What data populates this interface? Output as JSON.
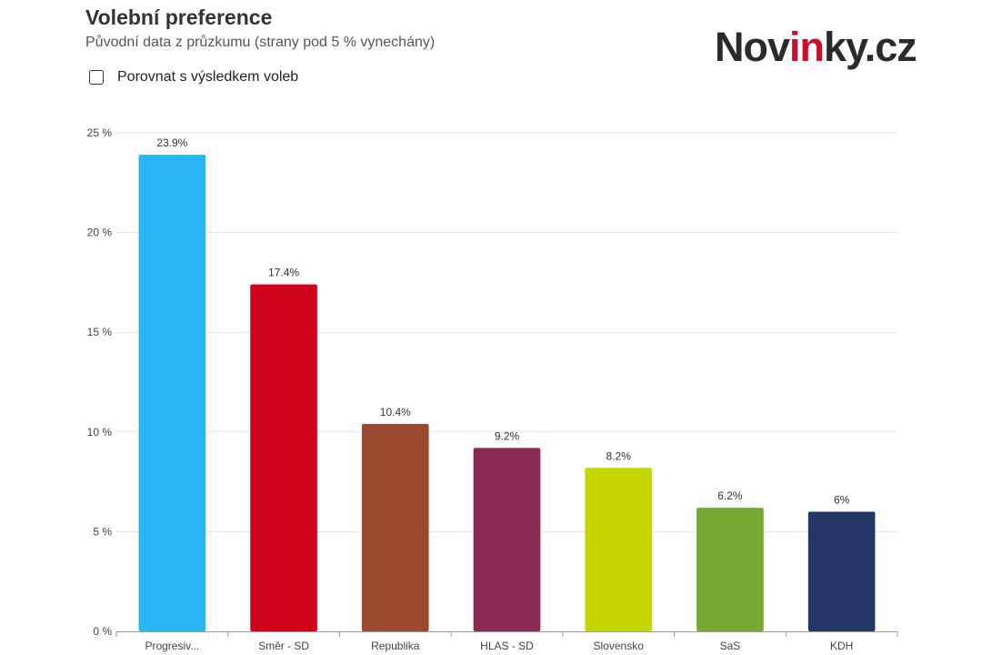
{
  "header": {
    "title": "Volební preference",
    "subtitle": "Původní data z průzkumu (strany pod 5 % vynechány)"
  },
  "logo": {
    "part1": "Nov",
    "part2": "in",
    "part3": "ky.cz"
  },
  "toggle": {
    "label": "Porovnat s výsledkem voleb",
    "checked": false
  },
  "chart_data": {
    "type": "bar",
    "categories": [
      "Progresiv...",
      "Směr - SD",
      "Republika",
      "HLAS - SD",
      "Slovensko",
      "SaS",
      "KDH"
    ],
    "values": [
      23.9,
      17.4,
      10.4,
      9.2,
      8.2,
      6.2,
      6
    ],
    "data_labels": [
      "23.9%",
      "17.4%",
      "10.4%",
      "9.2%",
      "8.2%",
      "6.2%",
      "6%"
    ],
    "colors": [
      "#29b6f6",
      "#d0021b",
      "#9b4a30",
      "#8b2a52",
      "#c6d600",
      "#76a832",
      "#233667"
    ],
    "ylim": [
      0,
      25
    ],
    "yticks": [
      0,
      5,
      10,
      15,
      20,
      25
    ],
    "ytick_labels": [
      "0 %",
      "5 %",
      "10 %",
      "15 %",
      "20 %",
      "25 %"
    ],
    "grid": true,
    "legend": "none"
  }
}
